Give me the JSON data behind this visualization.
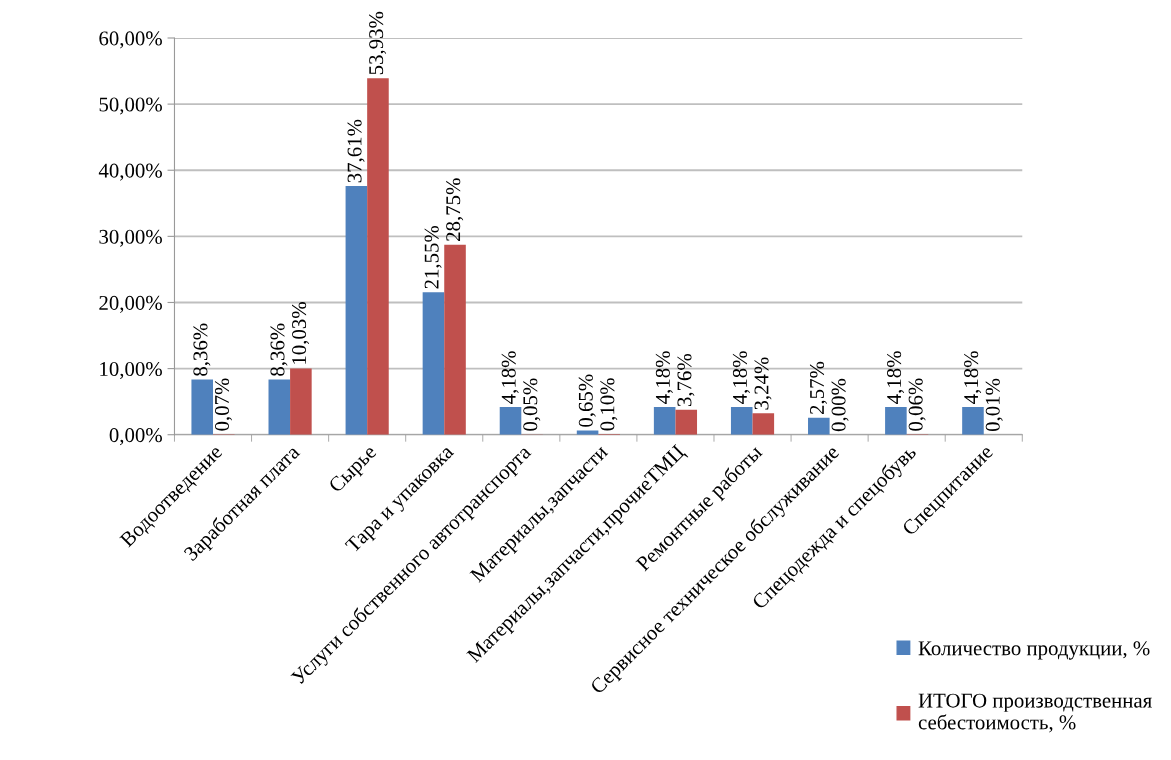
{
  "chart_data": {
    "type": "bar",
    "categories": [
      "Водоотведение",
      "Заработная плата",
      "Сырье",
      "Тара и упаковка",
      "Услуги собственного автотранспорта",
      "Материалы,запчасти",
      "Материалы,запчасти,прочиеТМЦ",
      "Ремонтные работы",
      "Сервисное техническое обслуживание",
      "Спецодежда и спецобувь",
      "Спецпитание"
    ],
    "series": [
      {
        "name": "Количество продукции, %",
        "color": "#4f81bd",
        "values": [
          8.36,
          8.36,
          37.61,
          21.55,
          4.18,
          0.65,
          4.18,
          4.18,
          2.57,
          4.18,
          4.18
        ],
        "value_labels": [
          "8,36%",
          "8,36%",
          "37,61%",
          "21,55%",
          "4,18%",
          "0,65%",
          "4,18%",
          "4,18%",
          "2,57%",
          "4,18%",
          "4,18%"
        ]
      },
      {
        "name": "ИТОГО производственная\nсебестоимость, %",
        "color": "#c0504d",
        "values": [
          0.07,
          10.03,
          53.93,
          28.75,
          0.05,
          0.1,
          3.76,
          3.24,
          0.0,
          0.06,
          0.01
        ],
        "value_labels": [
          "0,07%",
          "10,03%",
          "53,93%",
          "28,75%",
          "0,05%",
          "0,10%",
          "3,76%",
          "3,24%",
          "0,00%",
          "0,06%",
          "0,01%"
        ]
      }
    ],
    "ylim": [
      0,
      60
    ],
    "yticks": [
      {
        "value": 0,
        "label": "0,00%"
      },
      {
        "value": 10,
        "label": "10,00%"
      },
      {
        "value": 20,
        "label": "20,00%"
      },
      {
        "value": 30,
        "label": "30,00%"
      },
      {
        "value": 40,
        "label": "40,00%"
      },
      {
        "value": 50,
        "label": "50,00%"
      },
      {
        "value": 60,
        "label": "60,00%"
      }
    ],
    "grid": "y",
    "legend": "bottom right"
  }
}
